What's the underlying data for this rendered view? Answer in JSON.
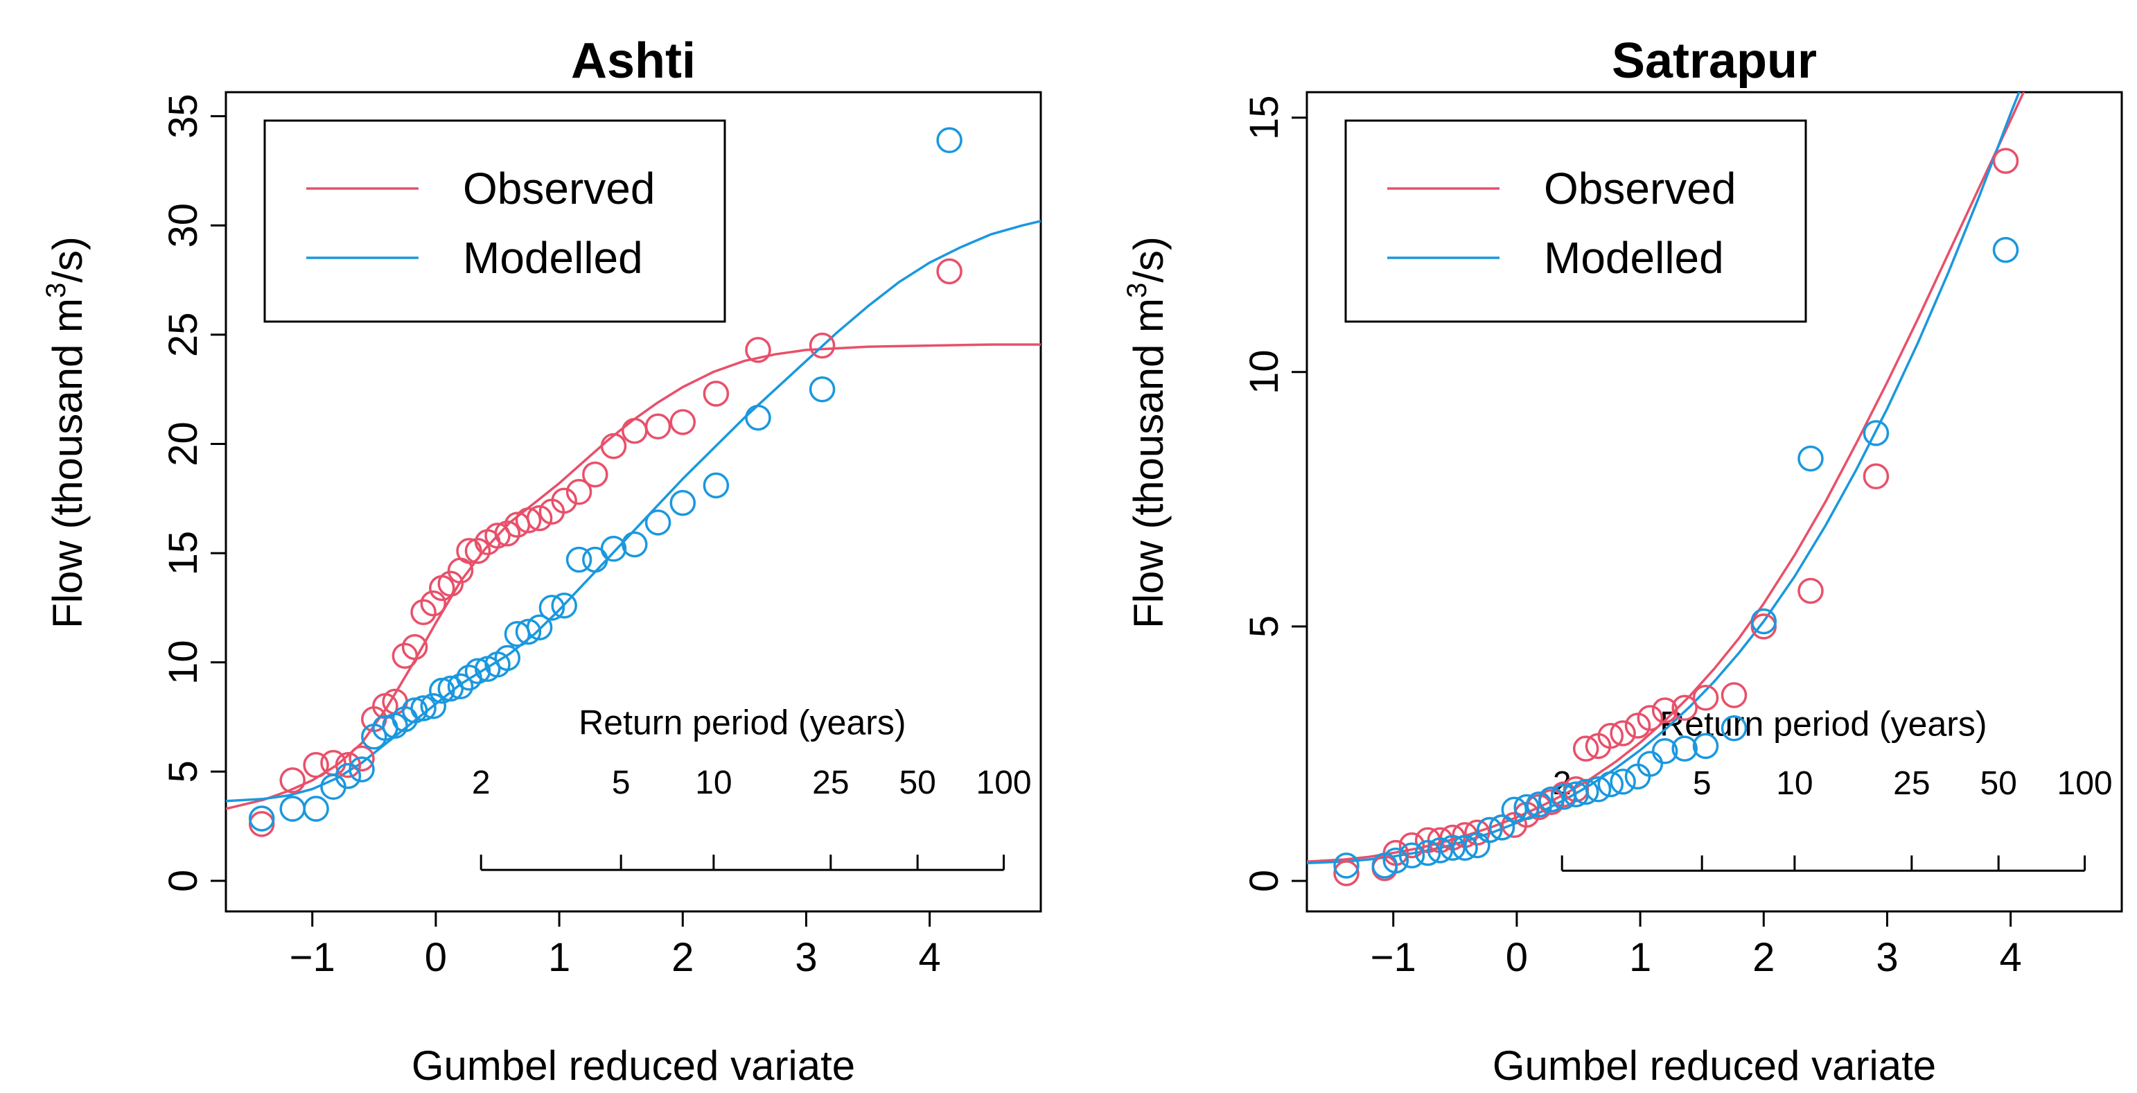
{
  "chart_data": [
    {
      "type": "scatter",
      "title": "Ashti",
      "xlabel": "Gumbel reduced variate",
      "ylabel_prefix": "Flow (thousand m",
      "ylabel_sup": "3",
      "ylabel_suffix": "/s)",
      "xlim": [
        -1.7,
        4.9
      ],
      "ylim": [
        -1.4,
        36.1
      ],
      "x_ticks": [
        -1,
        0,
        1,
        2,
        3,
        4
      ],
      "x_tick_labels": [
        "−1",
        "0",
        "1",
        "2",
        "3",
        "4"
      ],
      "y_ticks": [
        0,
        5,
        10,
        15,
        20,
        25,
        30,
        35
      ],
      "y_tick_labels": [
        "0",
        "5",
        "10",
        "15",
        "20",
        "25",
        "30",
        "35"
      ],
      "legend": {
        "position": "top-left",
        "entries": [
          "Observed",
          "Modelled"
        ]
      },
      "return_period": {
        "title": "Return period (years)",
        "labels": [
          "2",
          "5",
          "10",
          "25",
          "50",
          "100"
        ],
        "years": [
          2,
          5,
          10,
          25,
          50,
          100
        ],
        "baseline_y": 0.5,
        "label_y": 4.0,
        "title_y": 6.7
      },
      "series": [
        {
          "name": "Observed",
          "color": "#e8506a",
          "points": [
            [
              -1.41,
              2.6
            ],
            [
              -1.16,
              4.6
            ],
            [
              -0.97,
              5.3
            ],
            [
              -0.83,
              5.4
            ],
            [
              -0.71,
              5.3
            ],
            [
              -0.6,
              5.6
            ],
            [
              -0.5,
              7.4
            ],
            [
              -0.41,
              8.0
            ],
            [
              -0.33,
              8.2
            ],
            [
              -0.25,
              10.3
            ],
            [
              -0.17,
              10.7
            ],
            [
              -0.1,
              12.3
            ],
            [
              -0.02,
              12.7
            ],
            [
              0.05,
              13.4
            ],
            [
              0.12,
              13.6
            ],
            [
              0.2,
              14.2
            ],
            [
              0.27,
              15.1
            ],
            [
              0.34,
              15.1
            ],
            [
              0.42,
              15.5
            ],
            [
              0.5,
              15.8
            ],
            [
              0.58,
              15.9
            ],
            [
              0.66,
              16.3
            ],
            [
              0.75,
              16.5
            ],
            [
              0.84,
              16.6
            ],
            [
              0.94,
              16.9
            ],
            [
              1.04,
              17.4
            ],
            [
              1.16,
              17.8
            ],
            [
              1.29,
              18.6
            ],
            [
              1.44,
              19.9
            ],
            [
              1.61,
              20.6
            ],
            [
              1.8,
              20.8
            ],
            [
              2.0,
              21.0
            ],
            [
              2.27,
              22.3
            ],
            [
              2.61,
              24.3
            ],
            [
              3.13,
              24.5
            ],
            [
              4.16,
              27.9
            ]
          ],
          "fit": [
            [
              -1.7,
              3.3
            ],
            [
              -1.4,
              3.7
            ],
            [
              -1.2,
              4.1
            ],
            [
              -1.0,
              4.6
            ],
            [
              -0.8,
              5.3
            ],
            [
              -0.6,
              6.3
            ],
            [
              -0.4,
              7.9
            ],
            [
              -0.2,
              9.8
            ],
            [
              0.0,
              11.8
            ],
            [
              0.2,
              13.7
            ],
            [
              0.4,
              15.2
            ],
            [
              0.6,
              16.4
            ],
            [
              0.8,
              17.3
            ],
            [
              1.0,
              18.2
            ],
            [
              1.2,
              19.2
            ],
            [
              1.4,
              20.2
            ],
            [
              1.6,
              21.1
            ],
            [
              1.8,
              21.9
            ],
            [
              2.0,
              22.6
            ],
            [
              2.25,
              23.3
            ],
            [
              2.5,
              23.8
            ],
            [
              2.75,
              24.1
            ],
            [
              3.0,
              24.3
            ],
            [
              3.5,
              24.45
            ],
            [
              4.0,
              24.5
            ],
            [
              4.5,
              24.55
            ],
            [
              4.9,
              24.55
            ]
          ]
        },
        {
          "name": "Modelled",
          "color": "#1a98de",
          "points": [
            [
              -1.41,
              2.85
            ],
            [
              -1.16,
              3.3
            ],
            [
              -0.97,
              3.3
            ],
            [
              -0.83,
              4.3
            ],
            [
              -0.71,
              4.8
            ],
            [
              -0.6,
              5.1
            ],
            [
              -0.5,
              6.6
            ],
            [
              -0.41,
              7.0
            ],
            [
              -0.33,
              7.1
            ],
            [
              -0.25,
              7.4
            ],
            [
              -0.17,
              7.8
            ],
            [
              -0.1,
              7.9
            ],
            [
              -0.02,
              8.0
            ],
            [
              0.05,
              8.7
            ],
            [
              0.12,
              8.8
            ],
            [
              0.2,
              8.9
            ],
            [
              0.27,
              9.3
            ],
            [
              0.34,
              9.6
            ],
            [
              0.42,
              9.7
            ],
            [
              0.5,
              9.9
            ],
            [
              0.58,
              10.2
            ],
            [
              0.66,
              11.3
            ],
            [
              0.75,
              11.4
            ],
            [
              0.84,
              11.6
            ],
            [
              0.94,
              12.5
            ],
            [
              1.04,
              12.6
            ],
            [
              1.16,
              14.7
            ],
            [
              1.29,
              14.7
            ],
            [
              1.44,
              15.2
            ],
            [
              1.61,
              15.4
            ],
            [
              1.8,
              16.4
            ],
            [
              2.0,
              17.3
            ],
            [
              2.27,
              18.1
            ],
            [
              2.61,
              21.2
            ],
            [
              3.13,
              22.5
            ],
            [
              4.16,
              33.9
            ]
          ],
          "fit": [
            [
              -1.7,
              3.65
            ],
            [
              -1.4,
              3.75
            ],
            [
              -1.2,
              3.9
            ],
            [
              -1.0,
              4.2
            ],
            [
              -0.8,
              4.7
            ],
            [
              -0.6,
              5.4
            ],
            [
              -0.4,
              6.3
            ],
            [
              -0.2,
              7.2
            ],
            [
              0.0,
              8.1
            ],
            [
              0.2,
              9.0
            ],
            [
              0.4,
              9.7
            ],
            [
              0.6,
              10.4
            ],
            [
              0.8,
              11.3
            ],
            [
              1.0,
              12.4
            ],
            [
              1.2,
              13.6
            ],
            [
              1.4,
              14.8
            ],
            [
              1.6,
              16.0
            ],
            [
              1.8,
              17.2
            ],
            [
              2.0,
              18.4
            ],
            [
              2.25,
              19.8
            ],
            [
              2.5,
              21.2
            ],
            [
              2.75,
              22.5
            ],
            [
              3.0,
              23.8
            ],
            [
              3.25,
              25.1
            ],
            [
              3.5,
              26.3
            ],
            [
              3.75,
              27.4
            ],
            [
              4.0,
              28.3
            ],
            [
              4.25,
              29.0
            ],
            [
              4.5,
              29.6
            ],
            [
              4.75,
              30.0
            ],
            [
              4.9,
              30.2
            ]
          ]
        }
      ]
    },
    {
      "type": "scatter",
      "title": "Satrapur",
      "xlabel": "Gumbel reduced variate",
      "ylabel_prefix": "Flow (thousand m",
      "ylabel_sup": "3",
      "ylabel_suffix": "/s)",
      "xlim": [
        -1.7,
        4.9
      ],
      "ylim": [
        -0.6,
        15.5
      ],
      "x_ticks": [
        -1,
        0,
        1,
        2,
        3,
        4
      ],
      "x_tick_labels": [
        "−1",
        "0",
        "1",
        "2",
        "3",
        "4"
      ],
      "y_ticks": [
        0,
        5,
        10,
        15
      ],
      "y_tick_labels": [
        "0",
        "5",
        "10",
        "15"
      ],
      "legend": {
        "position": "top-left",
        "entries": [
          "Observed",
          "Modelled"
        ]
      },
      "return_period": {
        "title": "Return period (years)",
        "labels": [
          "2",
          "5",
          "10",
          "25",
          "50",
          "100"
        ],
        "years": [
          2,
          5,
          10,
          25,
          50,
          100
        ],
        "baseline_y": 0.2,
        "label_y": 1.7,
        "title_y": 2.85
      },
      "series": [
        {
          "name": "Observed",
          "color": "#e8506a",
          "points": [
            [
              -1.38,
              0.15
            ],
            [
              -1.07,
              0.25
            ],
            [
              -0.98,
              0.55
            ],
            [
              -0.85,
              0.7
            ],
            [
              -0.72,
              0.8
            ],
            [
              -0.62,
              0.8
            ],
            [
              -0.52,
              0.85
            ],
            [
              -0.42,
              0.9
            ],
            [
              -0.32,
              0.95
            ],
            [
              -0.22,
              1.0
            ],
            [
              -0.12,
              1.05
            ],
            [
              -0.02,
              1.1
            ],
            [
              0.08,
              1.3
            ],
            [
              0.18,
              1.45
            ],
            [
              0.28,
              1.55
            ],
            [
              0.38,
              1.7
            ],
            [
              0.48,
              1.8
            ],
            [
              0.56,
              2.6
            ],
            [
              0.66,
              2.65
            ],
            [
              0.76,
              2.85
            ],
            [
              0.86,
              2.9
            ],
            [
              0.98,
              3.05
            ],
            [
              1.08,
              3.2
            ],
            [
              1.2,
              3.35
            ],
            [
              1.36,
              3.4
            ],
            [
              1.53,
              3.6
            ],
            [
              1.76,
              3.65
            ],
            [
              2.0,
              5.0
            ],
            [
              2.38,
              5.7
            ],
            [
              2.91,
              7.95
            ],
            [
              3.96,
              14.15
            ]
          ],
          "fit": [
            [
              -1.7,
              0.38
            ],
            [
              -1.4,
              0.42
            ],
            [
              -1.2,
              0.47
            ],
            [
              -1.0,
              0.55
            ],
            [
              -0.8,
              0.64
            ],
            [
              -0.6,
              0.76
            ],
            [
              -0.4,
              0.9
            ],
            [
              -0.2,
              1.06
            ],
            [
              0.0,
              1.25
            ],
            [
              0.2,
              1.47
            ],
            [
              0.4,
              1.72
            ],
            [
              0.6,
              2.01
            ],
            [
              0.8,
              2.34
            ],
            [
              1.0,
              2.72
            ],
            [
              1.2,
              3.15
            ],
            [
              1.4,
              3.63
            ],
            [
              1.6,
              4.17
            ],
            [
              1.8,
              4.77
            ],
            [
              2.0,
              5.45
            ],
            [
              2.25,
              6.4
            ],
            [
              2.5,
              7.45
            ],
            [
              2.75,
              8.6
            ],
            [
              3.0,
              9.8
            ],
            [
              3.25,
              11.05
            ],
            [
              3.5,
              12.35
            ],
            [
              3.75,
              13.65
            ],
            [
              4.0,
              14.95
            ],
            [
              4.2,
              16.0
            ]
          ]
        },
        {
          "name": "Modelled",
          "color": "#1a98de",
          "points": [
            [
              -1.38,
              0.3
            ],
            [
              -1.07,
              0.3
            ],
            [
              -0.98,
              0.4
            ],
            [
              -0.85,
              0.5
            ],
            [
              -0.72,
              0.55
            ],
            [
              -0.62,
              0.6
            ],
            [
              -0.52,
              0.65
            ],
            [
              -0.42,
              0.65
            ],
            [
              -0.32,
              0.7
            ],
            [
              -0.22,
              1.0
            ],
            [
              -0.12,
              1.05
            ],
            [
              -0.02,
              1.4
            ],
            [
              0.08,
              1.45
            ],
            [
              0.18,
              1.5
            ],
            [
              0.28,
              1.6
            ],
            [
              0.38,
              1.65
            ],
            [
              0.48,
              1.7
            ],
            [
              0.56,
              1.75
            ],
            [
              0.66,
              1.8
            ],
            [
              0.76,
              1.9
            ],
            [
              0.86,
              1.95
            ],
            [
              0.98,
              2.05
            ],
            [
              1.08,
              2.3
            ],
            [
              1.2,
              2.55
            ],
            [
              1.36,
              2.6
            ],
            [
              1.53,
              2.65
            ],
            [
              1.76,
              3.0
            ],
            [
              2.0,
              5.1
            ],
            [
              2.38,
              8.3
            ],
            [
              2.91,
              8.8
            ],
            [
              3.96,
              12.4
            ]
          ],
          "fit": [
            [
              -1.7,
              0.35
            ],
            [
              -1.4,
              0.38
            ],
            [
              -1.2,
              0.42
            ],
            [
              -1.0,
              0.48
            ],
            [
              -0.8,
              0.56
            ],
            [
              -0.6,
              0.66
            ],
            [
              -0.4,
              0.79
            ],
            [
              -0.2,
              0.95
            ],
            [
              0.0,
              1.14
            ],
            [
              0.2,
              1.36
            ],
            [
              0.4,
              1.61
            ],
            [
              0.6,
              1.89
            ],
            [
              0.8,
              2.21
            ],
            [
              1.0,
              2.57
            ],
            [
              1.2,
              2.97
            ],
            [
              1.4,
              3.42
            ],
            [
              1.6,
              3.92
            ],
            [
              1.8,
              4.48
            ],
            [
              2.0,
              5.1
            ],
            [
              2.25,
              5.98
            ],
            [
              2.5,
              6.98
            ],
            [
              2.75,
              8.08
            ],
            [
              3.0,
              9.28
            ],
            [
              3.25,
              10.58
            ],
            [
              3.5,
              11.98
            ],
            [
              3.75,
              13.48
            ],
            [
              4.0,
              15.08
            ],
            [
              4.2,
              16.3
            ]
          ]
        }
      ]
    }
  ]
}
